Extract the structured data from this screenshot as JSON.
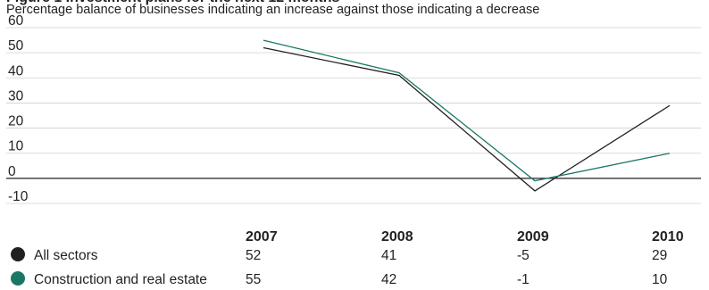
{
  "chart_data": {
    "type": "line",
    "title": "",
    "subtitle": "Percentage balance of businesses indicating an increase against those indicating a decrease",
    "categories": [
      "2007",
      "2008",
      "2009",
      "2010"
    ],
    "y_ticks": [
      "60",
      "50",
      "40",
      "30",
      "20",
      "10",
      "0",
      "-10"
    ],
    "ylim": [
      -10,
      60
    ],
    "series": [
      {
        "name": "All sectors",
        "labels": [
          "52",
          "41",
          "-5",
          "29"
        ],
        "values": [
          52,
          41,
          -5,
          29
        ],
        "color": "#231f20"
      },
      {
        "name": "Construction and real estate",
        "labels": [
          "55",
          "42",
          "-1",
          "10"
        ],
        "values": [
          55,
          42,
          -1,
          10
        ],
        "color": "#1a7766"
      }
    ],
    "legend": "bottom-table",
    "grid": true
  }
}
